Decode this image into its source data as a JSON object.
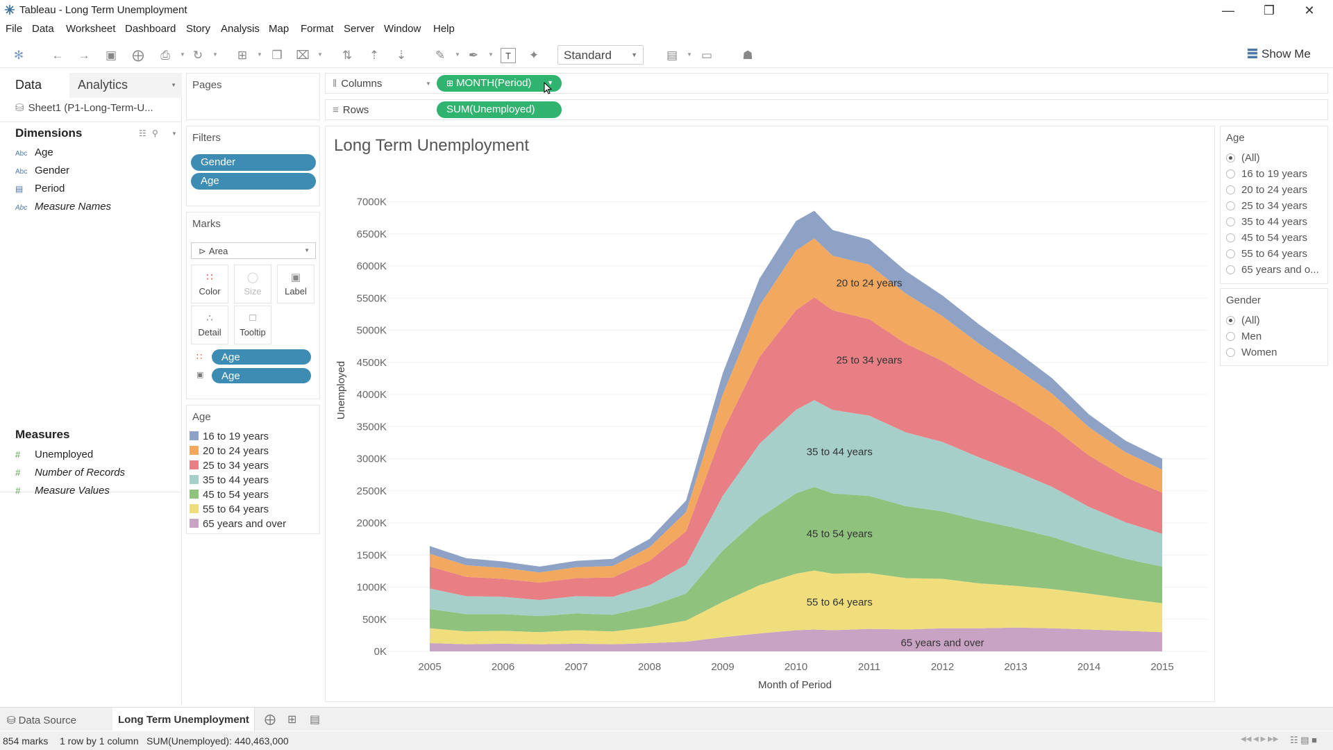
{
  "window": {
    "title": "Tableau - Long Term Unemployment"
  },
  "menu": [
    "File",
    "Data",
    "Worksheet",
    "Dashboard",
    "Story",
    "Analysis",
    "Map",
    "Format",
    "Server",
    "Window",
    "Help"
  ],
  "toolbar": {
    "fit_select": "Standard",
    "show_me": "Show Me"
  },
  "data_pane": {
    "tab_data": "Data",
    "tab_analytics": "Analytics",
    "data_source": "Sheet1 (P1-Long-Term-U...",
    "dimensions_title": "Dimensions",
    "dimensions": [
      {
        "type": "Abc",
        "name": "Age"
      },
      {
        "type": "Abc",
        "name": "Gender"
      },
      {
        "type": "date",
        "name": "Period"
      },
      {
        "type": "Abc",
        "name": "Measure Names"
      }
    ],
    "measures_title": "Measures",
    "measures": [
      {
        "type": "#",
        "name": "Unemployed"
      },
      {
        "type": "#",
        "name": "Number of Records"
      },
      {
        "type": "#",
        "name": "Measure Values"
      }
    ]
  },
  "pages": {
    "title": "Pages"
  },
  "filters": {
    "title": "Filters",
    "pills": [
      "Gender",
      "Age"
    ]
  },
  "marks": {
    "title": "Marks",
    "type": "Area",
    "buttons": [
      "Color",
      "Size",
      "Label",
      "Detail",
      "Tooltip"
    ],
    "pills": [
      "Age",
      "Age"
    ]
  },
  "legend": {
    "title": "Age",
    "items": [
      {
        "label": "16 to 19 years",
        "color": "#8da2c4"
      },
      {
        "label": "20 to 24 years",
        "color": "#f2a85f"
      },
      {
        "label": "25 to 34 years",
        "color": "#e87f84"
      },
      {
        "label": "35 to 44 years",
        "color": "#a6cfca"
      },
      {
        "label": "45 to 54 years",
        "color": "#8ec27d"
      },
      {
        "label": "55 to 64 years",
        "color": "#f0de7c"
      },
      {
        "label": "65 years and over",
        "color": "#c9a3c4"
      }
    ]
  },
  "shelves": {
    "columns_label": "Columns",
    "columns_pill": "MONTH(Period)",
    "rows_label": "Rows",
    "rows_pill": "SUM(Unemployed)"
  },
  "quick_filters": {
    "age": {
      "title": "Age",
      "options": [
        "(All)",
        "16 to 19 years",
        "20 to 24 years",
        "25 to 34 years",
        "35 to 44 years",
        "45 to 54 years",
        "55 to 64 years",
        "65 years and o..."
      ],
      "selected": "(All)"
    },
    "gender": {
      "title": "Gender",
      "options": [
        "(All)",
        "Men",
        "Women"
      ],
      "selected": "(All)"
    }
  },
  "sheet_tabs": {
    "data_source": "Data Source",
    "active": "Long Term Unemployment"
  },
  "status": {
    "marks": "854 marks",
    "dims": "1 row by 1 column",
    "sum": "SUM(Unemployed): 440,463,000"
  },
  "chart_data": {
    "type": "area",
    "title": "Long Term Unemployment",
    "xlabel": "Month of Period",
    "ylabel": "Unemployed",
    "x": [
      2005.0,
      2005.5,
      2006.0,
      2006.5,
      2007.0,
      2007.5,
      2008.0,
      2008.5,
      2009.0,
      2009.5,
      2010.0,
      2010.25,
      2010.5,
      2011.0,
      2011.5,
      2012.0,
      2012.5,
      2013.0,
      2013.5,
      2014.0,
      2014.5,
      2015.0
    ],
    "x_ticks": [
      "2005",
      "2006",
      "2007",
      "2008",
      "2009",
      "2010",
      "2011",
      "2012",
      "2013",
      "2014",
      "2015"
    ],
    "y_ticks": [
      "0K",
      "500K",
      "1000K",
      "1500K",
      "2000K",
      "2500K",
      "3000K",
      "3500K",
      "4000K",
      "4500K",
      "5000K",
      "5500K",
      "6000K",
      "6500K",
      "7000K"
    ],
    "ylim": [
      0,
      7200
    ],
    "series": [
      {
        "name": "65 years and over",
        "values": [
          130,
          110,
          120,
          110,
          120,
          110,
          130,
          150,
          220,
          280,
          330,
          340,
          330,
          350,
          340,
          360,
          360,
          370,
          360,
          340,
          320,
          300
        ]
      },
      {
        "name": "55 to 64 years",
        "values": [
          230,
          200,
          200,
          190,
          210,
          200,
          250,
          330,
          550,
          750,
          880,
          920,
          880,
          870,
          800,
          770,
          700,
          650,
          610,
          560,
          500,
          450
        ]
      },
      {
        "name": "45 to 54 years",
        "values": [
          300,
          270,
          260,
          250,
          260,
          260,
          320,
          420,
          800,
          1050,
          1250,
          1300,
          1250,
          1200,
          1120,
          1050,
          980,
          900,
          810,
          700,
          620,
          570
        ]
      },
      {
        "name": "35 to 44 years",
        "values": [
          320,
          280,
          270,
          250,
          270,
          280,
          330,
          450,
          850,
          1150,
          1300,
          1350,
          1300,
          1250,
          1150,
          1080,
          980,
          880,
          780,
          650,
          570,
          510
        ]
      },
      {
        "name": "25 to 34 years",
        "values": [
          340,
          300,
          280,
          270,
          280,
          300,
          380,
          520,
          1000,
          1350,
          1550,
          1600,
          1550,
          1500,
          1380,
          1260,
          1150,
          1050,
          930,
          800,
          700,
          640
        ]
      },
      {
        "name": "20 to 24 years",
        "values": [
          200,
          180,
          170,
          160,
          170,
          180,
          210,
          300,
          580,
          800,
          930,
          920,
          850,
          850,
          780,
          700,
          620,
          560,
          520,
          440,
          390,
          360
        ]
      },
      {
        "name": "16 to 19 years",
        "values": [
          120,
          110,
          100,
          90,
          100,
          110,
          130,
          180,
          330,
          420,
          460,
          430,
          400,
          390,
          350,
          320,
          300,
          270,
          240,
          200,
          180,
          170
        ]
      }
    ],
    "annotations": [
      "20 to 24 years",
      "25 to 34 years",
      "35 to 44 years",
      "45 to 54 years",
      "55 to 64 years",
      "65 years and over"
    ]
  }
}
